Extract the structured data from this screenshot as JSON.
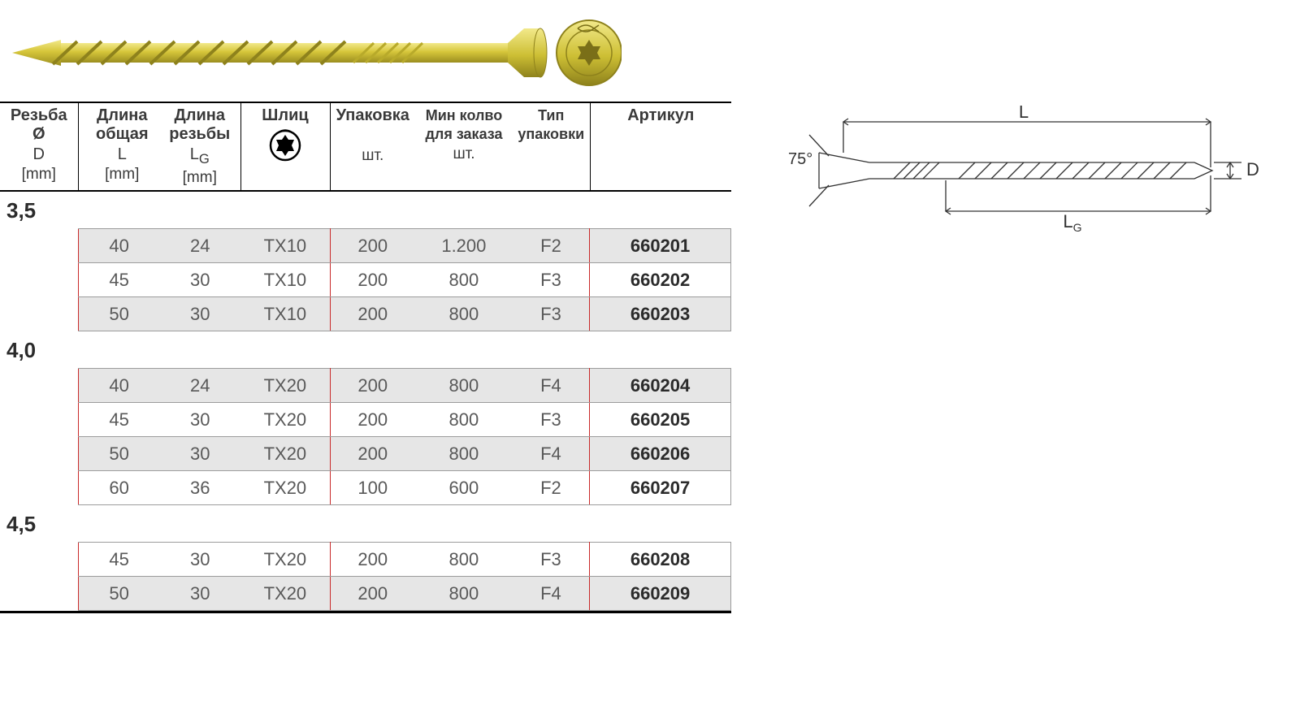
{
  "colors": {
    "bg": "#ffffff",
    "text": "#3a3a3a",
    "muted": "#595959",
    "line": "#000000",
    "rowline": "#9c9c9c",
    "alt": "#e6e6e6",
    "redline": "#c92a2a",
    "screw_fill": "#d6c63a",
    "screw_dark": "#9b8e20",
    "screw_hi": "#f2e98a",
    "diag_line": "#333333"
  },
  "diagram": {
    "angle": "75°",
    "L": "L",
    "LG": "L",
    "LG_sub": "G",
    "D": "D"
  },
  "header": {
    "col_d": "Резьба",
    "col_d_sym": "Ø",
    "col_d_sub": "D",
    "col_d_unit": "[mm]",
    "col_len": "Длина общая",
    "col_len_sub": "L",
    "col_len_unit": "[mm]",
    "col_lg": "Длина резьбы",
    "col_lg_sub": "L",
    "col_lg_subG": "G",
    "col_lg_unit": "[mm]",
    "col_slot": "Шлиц",
    "col_pack": "Упаковка",
    "col_pack_unit": "шт.",
    "col_min": "Мин колво для заказа",
    "col_min_unit": "шт.",
    "col_ptype": "Тип упаковки",
    "col_art": "Артикул"
  },
  "groups": [
    {
      "dia": "3,5",
      "rows": [
        {
          "L": "40",
          "LG": "24",
          "tx": "TX10",
          "pack": "200",
          "min": "1.200",
          "ptype": "F2",
          "art": "660201",
          "alt": true
        },
        {
          "L": "45",
          "LG": "30",
          "tx": "TX10",
          "pack": "200",
          "min": "800",
          "ptype": "F3",
          "art": "660202",
          "alt": false
        },
        {
          "L": "50",
          "LG": "30",
          "tx": "TX10",
          "pack": "200",
          "min": "800",
          "ptype": "F3",
          "art": "660203",
          "alt": true
        }
      ]
    },
    {
      "dia": "4,0",
      "rows": [
        {
          "L": "40",
          "LG": "24",
          "tx": "TX20",
          "pack": "200",
          "min": "800",
          "ptype": "F4",
          "art": "660204",
          "alt": true
        },
        {
          "L": "45",
          "LG": "30",
          "tx": "TX20",
          "pack": "200",
          "min": "800",
          "ptype": "F3",
          "art": "660205",
          "alt": false
        },
        {
          "L": "50",
          "LG": "30",
          "tx": "TX20",
          "pack": "200",
          "min": "800",
          "ptype": "F4",
          "art": "660206",
          "alt": true
        },
        {
          "L": "60",
          "LG": "36",
          "tx": "TX20",
          "pack": "100",
          "min": "600",
          "ptype": "F2",
          "art": "660207",
          "alt": false
        }
      ]
    },
    {
      "dia": "4,5",
      "rows": [
        {
          "L": "45",
          "LG": "30",
          "tx": "TX20",
          "pack": "200",
          "min": "800",
          "ptype": "F3",
          "art": "660208",
          "alt": false
        },
        {
          "L": "50",
          "LG": "30",
          "tx": "TX20",
          "pack": "200",
          "min": "800",
          "ptype": "F4",
          "art": "660209",
          "alt": true
        }
      ]
    }
  ]
}
